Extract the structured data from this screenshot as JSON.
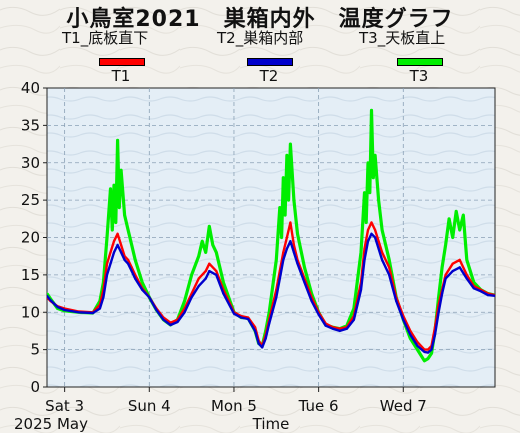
{
  "title": "小鳥室2021　巣箱内外　温度グラフ",
  "sensors": [
    {
      "id": "T1",
      "label": "T1_底板直下",
      "color": "#ff0000"
    },
    {
      "id": "T2",
      "label": "T2_巣箱内部",
      "color": "#0000cc"
    },
    {
      "id": "T3",
      "label": "T3_天板直上",
      "color": "#00ee00"
    }
  ],
  "chart_data": {
    "type": "line",
    "xlabel": "Time",
    "year_month": "2025 May",
    "x_range": [
      "2025-05-02T19:00",
      "2025-05-08T02:00"
    ],
    "x_ticks": [
      {
        "date": "2025-05-03",
        "label": "Sat 3"
      },
      {
        "date": "2025-05-04",
        "label": "Sun 4"
      },
      {
        "date": "2025-05-05",
        "label": "Mon 5"
      },
      {
        "date": "2025-05-06",
        "label": "Tue 6"
      },
      {
        "date": "2025-05-07",
        "label": "Wed 7"
      }
    ],
    "ylim": [
      0,
      40
    ],
    "y_ticks": [
      0,
      5,
      10,
      15,
      20,
      25,
      30,
      35,
      40
    ],
    "series": [
      {
        "name": "T1",
        "color": "#ff0000",
        "points": [
          [
            "2025-05-02T19:00",
            12.0
          ],
          [
            "2025-05-02T20:00",
            11.5
          ],
          [
            "2025-05-02T22:00",
            10.8
          ],
          [
            "2025-05-03T00:00",
            10.5
          ],
          [
            "2025-05-03T04:00",
            10.1
          ],
          [
            "2025-05-03T08:00",
            10.0
          ],
          [
            "2025-05-03T10:00",
            11.0
          ],
          [
            "2025-05-03T11:00",
            13.0
          ],
          [
            "2025-05-03T12:00",
            16.5
          ],
          [
            "2025-05-03T13:00",
            18.0
          ],
          [
            "2025-05-03T14:00",
            19.5
          ],
          [
            "2025-05-03T15:00",
            20.5
          ],
          [
            "2025-05-03T16:00",
            19.0
          ],
          [
            "2025-05-03T17:00",
            17.5
          ],
          [
            "2025-05-03T18:00",
            17.0
          ],
          [
            "2025-05-03T19:00",
            16.0
          ],
          [
            "2025-05-03T20:00",
            15.0
          ],
          [
            "2025-05-03T22:00",
            13.2
          ],
          [
            "2025-05-04T00:00",
            12.0
          ],
          [
            "2025-05-04T02:00",
            10.5
          ],
          [
            "2025-05-04T04:00",
            9.3
          ],
          [
            "2025-05-04T06:00",
            8.6
          ],
          [
            "2025-05-04T08:00",
            9.0
          ],
          [
            "2025-05-04T10:00",
            10.5
          ],
          [
            "2025-05-04T12:00",
            12.5
          ],
          [
            "2025-05-04T14:00",
            14.5
          ],
          [
            "2025-05-04T16:00",
            15.5
          ],
          [
            "2025-05-04T17:00",
            16.5
          ],
          [
            "2025-05-04T19:00",
            15.5
          ],
          [
            "2025-05-04T21:00",
            13.0
          ],
          [
            "2025-05-05T00:00",
            10.0
          ],
          [
            "2025-05-05T02:00",
            9.5
          ],
          [
            "2025-05-05T04:00",
            9.3
          ],
          [
            "2025-05-05T06:00",
            8.0
          ],
          [
            "2025-05-05T07:00",
            6.2
          ],
          [
            "2025-05-05T08:00",
            5.5
          ],
          [
            "2025-05-05T09:00",
            7.0
          ],
          [
            "2025-05-05T10:00",
            9.0
          ],
          [
            "2025-05-05T12:00",
            13.0
          ],
          [
            "2025-05-05T13:00",
            15.5
          ],
          [
            "2025-05-05T14:00",
            18.0
          ],
          [
            "2025-05-05T15:00",
            20.0
          ],
          [
            "2025-05-05T16:00",
            22.0
          ],
          [
            "2025-05-05T17:00",
            19.0
          ],
          [
            "2025-05-05T18:00",
            17.0
          ],
          [
            "2025-05-05T20:00",
            14.5
          ],
          [
            "2025-05-05T22:00",
            12.0
          ],
          [
            "2025-05-06T00:00",
            10.0
          ],
          [
            "2025-05-06T02:00",
            8.5
          ],
          [
            "2025-05-06T04:00",
            8.0
          ],
          [
            "2025-05-06T06:00",
            7.8
          ],
          [
            "2025-05-06T08:00",
            8.0
          ],
          [
            "2025-05-06T10:00",
            9.5
          ],
          [
            "2025-05-06T12:00",
            14.0
          ],
          [
            "2025-05-06T13:00",
            18.5
          ],
          [
            "2025-05-06T14:00",
            21.0
          ],
          [
            "2025-05-06T15:00",
            22.0
          ],
          [
            "2025-05-06T16:00",
            21.0
          ],
          [
            "2025-05-06T17:00",
            19.5
          ],
          [
            "2025-05-06T18:00",
            18.0
          ],
          [
            "2025-05-06T20:00",
            16.0
          ],
          [
            "2025-05-06T22:00",
            12.0
          ],
          [
            "2025-05-07T00:00",
            9.5
          ],
          [
            "2025-05-07T02:00",
            7.5
          ],
          [
            "2025-05-07T04:00",
            6.0
          ],
          [
            "2025-05-07T06:00",
            5.0
          ],
          [
            "2025-05-07T07:00",
            5.0
          ],
          [
            "2025-05-07T08:00",
            5.5
          ],
          [
            "2025-05-07T09:00",
            8.0
          ],
          [
            "2025-05-07T10:00",
            11.0
          ],
          [
            "2025-05-07T11:00",
            13.0
          ],
          [
            "2025-05-07T12:00",
            15.0
          ],
          [
            "2025-05-07T14:00",
            16.5
          ],
          [
            "2025-05-07T16:00",
            17.0
          ],
          [
            "2025-05-07T18:00",
            15.0
          ],
          [
            "2025-05-07T20:00",
            13.5
          ],
          [
            "2025-05-07T22:00",
            13.0
          ],
          [
            "2025-05-08T00:00",
            12.5
          ],
          [
            "2025-05-08T02:00",
            12.3
          ]
        ]
      },
      {
        "name": "T2",
        "color": "#0000cc",
        "points": [
          [
            "2025-05-02T19:00",
            12.2
          ],
          [
            "2025-05-02T20:00",
            11.6
          ],
          [
            "2025-05-02T22:00",
            10.7
          ],
          [
            "2025-05-03T00:00",
            10.3
          ],
          [
            "2025-05-03T04:00",
            10.0
          ],
          [
            "2025-05-03T08:00",
            9.9
          ],
          [
            "2025-05-03T10:00",
            10.5
          ],
          [
            "2025-05-03T11:00",
            12.0
          ],
          [
            "2025-05-03T12:00",
            15.0
          ],
          [
            "2025-05-03T13:00",
            16.5
          ],
          [
            "2025-05-03T14:00",
            18.0
          ],
          [
            "2025-05-03T15:00",
            19.0
          ],
          [
            "2025-05-03T16:00",
            18.0
          ],
          [
            "2025-05-03T17:00",
            17.0
          ],
          [
            "2025-05-03T18:00",
            16.5
          ],
          [
            "2025-05-03T19:00",
            15.5
          ],
          [
            "2025-05-03T20:00",
            14.5
          ],
          [
            "2025-05-03T22:00",
            13.0
          ],
          [
            "2025-05-04T00:00",
            12.0
          ],
          [
            "2025-05-04T02:00",
            10.3
          ],
          [
            "2025-05-04T04:00",
            9.0
          ],
          [
            "2025-05-04T06:00",
            8.3
          ],
          [
            "2025-05-04T08:00",
            8.7
          ],
          [
            "2025-05-04T10:00",
            10.0
          ],
          [
            "2025-05-04T12:00",
            12.0
          ],
          [
            "2025-05-04T14:00",
            13.5
          ],
          [
            "2025-05-04T16:00",
            14.5
          ],
          [
            "2025-05-04T17:00",
            15.5
          ],
          [
            "2025-05-04T19:00",
            15.0
          ],
          [
            "2025-05-04T21:00",
            12.5
          ],
          [
            "2025-05-05T00:00",
            9.8
          ],
          [
            "2025-05-05T02:00",
            9.3
          ],
          [
            "2025-05-05T04:00",
            9.1
          ],
          [
            "2025-05-05T06:00",
            7.5
          ],
          [
            "2025-05-05T07:00",
            5.8
          ],
          [
            "2025-05-05T08:00",
            5.3
          ],
          [
            "2025-05-05T09:00",
            6.5
          ],
          [
            "2025-05-05T10:00",
            8.5
          ],
          [
            "2025-05-05T12:00",
            12.0
          ],
          [
            "2025-05-05T13:00",
            14.5
          ],
          [
            "2025-05-05T14:00",
            17.0
          ],
          [
            "2025-05-05T15:00",
            18.5
          ],
          [
            "2025-05-05T16:00",
            19.5
          ],
          [
            "2025-05-05T17:00",
            18.0
          ],
          [
            "2025-05-05T18:00",
            16.5
          ],
          [
            "2025-05-05T20:00",
            14.0
          ],
          [
            "2025-05-05T22:00",
            11.5
          ],
          [
            "2025-05-06T00:00",
            9.7
          ],
          [
            "2025-05-06T02:00",
            8.2
          ],
          [
            "2025-05-06T04:00",
            7.8
          ],
          [
            "2025-05-06T06:00",
            7.5
          ],
          [
            "2025-05-06T08:00",
            7.8
          ],
          [
            "2025-05-06T10:00",
            9.0
          ],
          [
            "2025-05-06T12:00",
            13.0
          ],
          [
            "2025-05-06T13:00",
            17.0
          ],
          [
            "2025-05-06T14:00",
            19.5
          ],
          [
            "2025-05-06T15:00",
            20.5
          ],
          [
            "2025-05-06T16:00",
            20.0
          ],
          [
            "2025-05-06T17:00",
            18.5
          ],
          [
            "2025-05-06T18:00",
            17.0
          ],
          [
            "2025-05-06T20:00",
            15.0
          ],
          [
            "2025-05-06T22:00",
            11.5
          ],
          [
            "2025-05-07T00:00",
            9.0
          ],
          [
            "2025-05-07T02:00",
            7.0
          ],
          [
            "2025-05-07T04:00",
            5.5
          ],
          [
            "2025-05-07T06:00",
            4.7
          ],
          [
            "2025-05-07T07:00",
            4.6
          ],
          [
            "2025-05-07T08:00",
            5.0
          ],
          [
            "2025-05-07T09:00",
            7.0
          ],
          [
            "2025-05-07T10:00",
            10.0
          ],
          [
            "2025-05-07T11:00",
            12.5
          ],
          [
            "2025-05-07T12:00",
            14.5
          ],
          [
            "2025-05-07T14:00",
            15.5
          ],
          [
            "2025-05-07T16:00",
            16.0
          ],
          [
            "2025-05-07T18:00",
            14.5
          ],
          [
            "2025-05-07T20:00",
            13.2
          ],
          [
            "2025-05-07T22:00",
            12.8
          ],
          [
            "2025-05-08T00:00",
            12.3
          ],
          [
            "2025-05-08T02:00",
            12.2
          ]
        ]
      },
      {
        "name": "T3",
        "color": "#00ee00",
        "points": [
          [
            "2025-05-02T19:00",
            12.5
          ],
          [
            "2025-05-02T20:00",
            11.8
          ],
          [
            "2025-05-02T22:00",
            10.5
          ],
          [
            "2025-05-03T00:00",
            10.2
          ],
          [
            "2025-05-03T04:00",
            10.0
          ],
          [
            "2025-05-03T08:00",
            9.9
          ],
          [
            "2025-05-03T10:00",
            11.5
          ],
          [
            "2025-05-03T11:00",
            14.0
          ],
          [
            "2025-05-03T12:00",
            20.0
          ],
          [
            "2025-05-03T13:00",
            26.5
          ],
          [
            "2025-05-03T13:30",
            21.0
          ],
          [
            "2025-05-03T14:00",
            27.0
          ],
          [
            "2025-05-03T14:30",
            22.0
          ],
          [
            "2025-05-03T15:00",
            33.0
          ],
          [
            "2025-05-03T15:30",
            24.0
          ],
          [
            "2025-05-03T16:00",
            29.0
          ],
          [
            "2025-05-03T17:00",
            23.0
          ],
          [
            "2025-05-03T18:00",
            21.0
          ],
          [
            "2025-05-03T19:00",
            19.0
          ],
          [
            "2025-05-03T20:00",
            17.0
          ],
          [
            "2025-05-03T22:00",
            14.0
          ],
          [
            "2025-05-04T00:00",
            12.0
          ],
          [
            "2025-05-04T02:00",
            10.3
          ],
          [
            "2025-05-04T04:00",
            9.0
          ],
          [
            "2025-05-04T06:00",
            8.3
          ],
          [
            "2025-05-04T08:00",
            9.0
          ],
          [
            "2025-05-04T10:00",
            11.5
          ],
          [
            "2025-05-04T12:00",
            15.0
          ],
          [
            "2025-05-04T14:00",
            17.5
          ],
          [
            "2025-05-04T15:00",
            19.5
          ],
          [
            "2025-05-04T16:00",
            18.0
          ],
          [
            "2025-05-04T17:00",
            21.5
          ],
          [
            "2025-05-04T18:00",
            19.0
          ],
          [
            "2025-05-04T19:00",
            18.0
          ],
          [
            "2025-05-04T21:00",
            14.0
          ],
          [
            "2025-05-05T00:00",
            10.0
          ],
          [
            "2025-05-05T02:00",
            9.3
          ],
          [
            "2025-05-05T04:00",
            9.2
          ],
          [
            "2025-05-05T06:00",
            7.5
          ],
          [
            "2025-05-05T07:00",
            5.8
          ],
          [
            "2025-05-05T08:00",
            5.5
          ],
          [
            "2025-05-05T09:00",
            7.5
          ],
          [
            "2025-05-05T10:00",
            10.0
          ],
          [
            "2025-05-05T12:00",
            17.0
          ],
          [
            "2025-05-05T13:00",
            24.0
          ],
          [
            "2025-05-05T13:30",
            20.0
          ],
          [
            "2025-05-05T14:00",
            28.0
          ],
          [
            "2025-05-05T14:30",
            23.0
          ],
          [
            "2025-05-05T15:00",
            31.0
          ],
          [
            "2025-05-05T15:30",
            25.0
          ],
          [
            "2025-05-05T16:00",
            32.5
          ],
          [
            "2025-05-05T17:00",
            25.0
          ],
          [
            "2025-05-05T18:00",
            20.5
          ],
          [
            "2025-05-05T20:00",
            16.0
          ],
          [
            "2025-05-05T22:00",
            12.5
          ],
          [
            "2025-05-06T00:00",
            10.0
          ],
          [
            "2025-05-06T02:00",
            8.3
          ],
          [
            "2025-05-06T04:00",
            8.0
          ],
          [
            "2025-05-06T06:00",
            7.8
          ],
          [
            "2025-05-06T08:00",
            8.2
          ],
          [
            "2025-05-06T10:00",
            10.5
          ],
          [
            "2025-05-06T12:00",
            18.0
          ],
          [
            "2025-05-06T13:00",
            26.0
          ],
          [
            "2025-05-06T13:30",
            22.0
          ],
          [
            "2025-05-06T14:00",
            30.0
          ],
          [
            "2025-05-06T14:30",
            26.0
          ],
          [
            "2025-05-06T15:00",
            37.0
          ],
          [
            "2025-05-06T15:30",
            28.0
          ],
          [
            "2025-05-06T16:00",
            31.0
          ],
          [
            "2025-05-06T17:00",
            25.0
          ],
          [
            "2025-05-06T18:00",
            21.0
          ],
          [
            "2025-05-06T20:00",
            17.0
          ],
          [
            "2025-05-06T22:00",
            12.0
          ],
          [
            "2025-05-07T00:00",
            9.0
          ],
          [
            "2025-05-07T02:00",
            6.5
          ],
          [
            "2025-05-07T04:00",
            5.0
          ],
          [
            "2025-05-07T06:00",
            3.5
          ],
          [
            "2025-05-07T07:00",
            3.8
          ],
          [
            "2025-05-07T08:00",
            4.5
          ],
          [
            "2025-05-07T09:00",
            7.5
          ],
          [
            "2025-05-07T10:00",
            12.0
          ],
          [
            "2025-05-07T11:00",
            16.0
          ],
          [
            "2025-05-07T12:00",
            19.0
          ],
          [
            "2025-05-07T13:00",
            22.5
          ],
          [
            "2025-05-07T14:00",
            20.0
          ],
          [
            "2025-05-07T15:00",
            23.5
          ],
          [
            "2025-05-07T16:00",
            21.0
          ],
          [
            "2025-05-07T17:00",
            23.0
          ],
          [
            "2025-05-07T18:00",
            17.0
          ],
          [
            "2025-05-07T20:00",
            14.0
          ],
          [
            "2025-05-07T22:00",
            13.0
          ],
          [
            "2025-05-08T00:00",
            12.5
          ],
          [
            "2025-05-08T02:00",
            12.3
          ]
        ]
      }
    ]
  }
}
